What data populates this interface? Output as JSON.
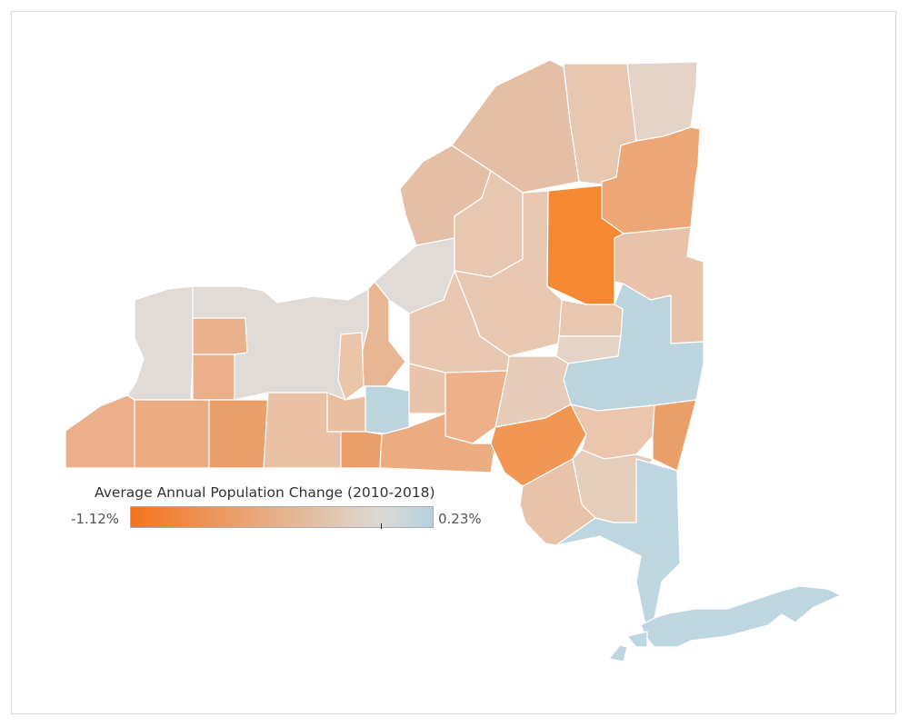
{
  "legend": {
    "title": "Average Annual Population Change (2010-2018)",
    "min_label": "-1.12%",
    "max_label": "0.23%",
    "min_value": -1.12,
    "max_value": 0.23,
    "zero_value": 0,
    "color_low": "#f5741c",
    "color_mid": "#dcdad6",
    "color_high": "#b5d1dd"
  },
  "colors": {
    "c1": "#e8c7b0",
    "c2": "#e4bfa5",
    "c3": "#e6d3c8",
    "c4": "#eda776",
    "c5": "#f58833",
    "c6": "#e9c3a9",
    "c7": "#e0dbd7",
    "c8": "#e8b693",
    "c9": "#e9b28c",
    "c10": "#ebb08b",
    "c11": "#e8c3a9",
    "c12": "#e5cdbc",
    "c13": "#bcd4de",
    "c14": "#ebc5a9",
    "c15": "#e9c4aa",
    "c16": "#e6ccb8",
    "c17": "#edb088",
    "c18": "#f09753",
    "c19": "#e9c6ad",
    "c20": "#ea9f69",
    "c21": "#bdd6e0",
    "c22": "#ebac82",
    "c23": "#e9c1a5",
    "c24": "#e6ddd6",
    "c25": "#e2dcd8",
    "c26": "#e9bfa0"
  }
}
